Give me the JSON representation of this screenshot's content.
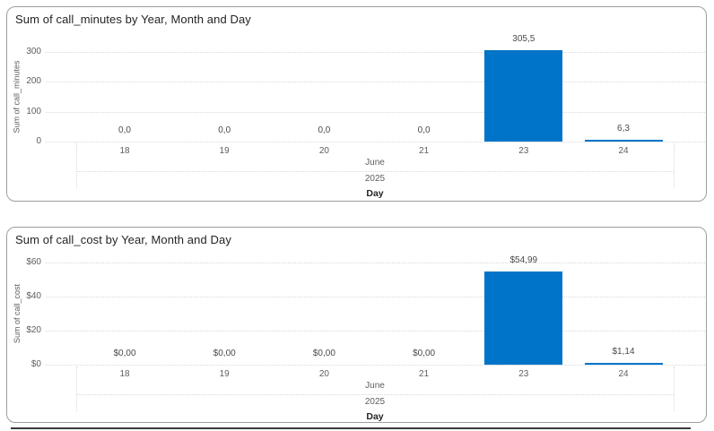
{
  "colors": {
    "bar": "#0074C8",
    "grid": "#D9D9D9",
    "tick_text": "#605E5C",
    "data_label_text": "#4A4A4A",
    "title_text": "#252423",
    "card_border": "#9E9E9E",
    "bottom_divider": "#3A3A3A"
  },
  "chart_data": [
    {
      "type": "bar",
      "title": "Sum of call_minutes by Year, Month and Day",
      "xlabel": "Day",
      "ylabel": "Sum of call_minutes",
      "categories": [
        "18",
        "19",
        "20",
        "21",
        "23",
        "24"
      ],
      "values": [
        0.0,
        0.0,
        0.0,
        0.0,
        305.5,
        6.3
      ],
      "data_labels": [
        "0,0",
        "0,0",
        "0,0",
        "0,0",
        "305,5",
        "6,3"
      ],
      "y_ticks": [
        {
          "label": "0",
          "value": 0
        },
        {
          "label": "100",
          "value": 100
        },
        {
          "label": "200",
          "value": 200
        },
        {
          "label": "300",
          "value": 300
        }
      ],
      "ylim": [
        0,
        300
      ],
      "month_label": "June",
      "year_label": "2025",
      "legend": "none",
      "grid": "horizontal-dotted"
    },
    {
      "type": "bar",
      "title": "Sum of call_cost by Year, Month and Day",
      "xlabel": "Day",
      "ylabel": "Sum of call_cost",
      "categories": [
        "18",
        "19",
        "20",
        "21",
        "23",
        "24"
      ],
      "values": [
        0.0,
        0.0,
        0.0,
        0.0,
        54.99,
        1.14
      ],
      "data_labels": [
        "$0,00",
        "$0,00",
        "$0,00",
        "$0,00",
        "$54,99",
        "$1,14"
      ],
      "y_ticks": [
        {
          "label": "$0",
          "value": 0
        },
        {
          "label": "$20",
          "value": 20
        },
        {
          "label": "$40",
          "value": 40
        },
        {
          "label": "$60",
          "value": 60
        }
      ],
      "ylim": [
        0,
        60
      ],
      "month_label": "June",
      "year_label": "2025",
      "legend": "none",
      "grid": "horizontal-dotted"
    }
  ]
}
